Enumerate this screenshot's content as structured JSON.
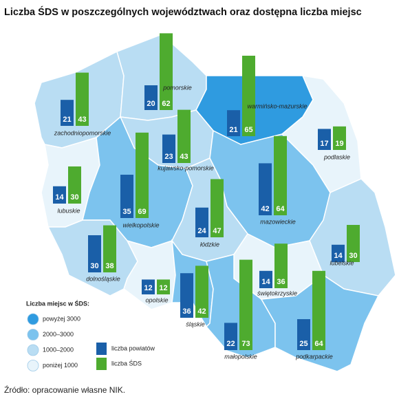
{
  "title": "Liczba ŚDS w poszczególnych województwach oraz dostępna liczba miejsc",
  "legend": {
    "title": "Liczba miejsc w ŚDS:",
    "classes": [
      {
        "label": "powyżej 3000",
        "color": "#2f9be0"
      },
      {
        "label": "2000–3000",
        "color": "#7cc3ee"
      },
      {
        "label": "1000–2000",
        "color": "#b9ddf3"
      },
      {
        "label": "poniżej 1000",
        "color": "#e8f4fb"
      }
    ]
  },
  "series": [
    {
      "name": "liczba powiatów",
      "color": "#1a5fa8"
    },
    {
      "name": "liczba ŚDS",
      "color": "#4eab2f"
    }
  ],
  "regions": [
    {
      "name": "zachodniopomorskie",
      "powiaty": 21,
      "sds": 43,
      "color": "#b9ddf3"
    },
    {
      "name": "pomorskie",
      "powiaty": 20,
      "sds": 62,
      "color": "#b9ddf3"
    },
    {
      "name": "warmińsko-mazurskie",
      "powiaty": 21,
      "sds": 65,
      "color": "#2f9be0"
    },
    {
      "name": "podlaskie",
      "powiaty": 17,
      "sds": 19,
      "color": "#e8f4fb"
    },
    {
      "name": "kujawsko-pomorskie",
      "powiaty": 23,
      "sds": 43,
      "color": "#b9ddf3"
    },
    {
      "name": "lubuskie",
      "powiaty": 14,
      "sds": 30,
      "color": "#e8f4fb"
    },
    {
      "name": "wielkopolskie",
      "powiaty": 35,
      "sds": 69,
      "color": "#7cc3ee"
    },
    {
      "name": "mazowieckie",
      "powiaty": 42,
      "sds": 64,
      "color": "#7cc3ee"
    },
    {
      "name": "łódzkie",
      "powiaty": 24,
      "sds": 47,
      "color": "#b9ddf3"
    },
    {
      "name": "lubelskie",
      "powiaty": 14,
      "sds": 30,
      "color": "#b9ddf3"
    },
    {
      "name": "dolnośląskie",
      "powiaty": 30,
      "sds": 38,
      "color": "#b9ddf3"
    },
    {
      "name": "świętokrzyskie",
      "powiaty": 14,
      "sds": 36,
      "color": "#e8f4fb"
    },
    {
      "name": "opolskie",
      "powiaty": 12,
      "sds": 12,
      "color": "#e8f4fb"
    },
    {
      "name": "śląskie",
      "powiaty": 36,
      "sds": 42,
      "color": "#7cc3ee"
    },
    {
      "name": "małopolskie",
      "powiaty": 22,
      "sds": 73,
      "color": "#7cc3ee"
    },
    {
      "name": "podkarpackie",
      "powiaty": 25,
      "sds": 64,
      "color": "#7cc3ee"
    }
  ],
  "source": "Źródło: opracowanie własne NIK."
}
